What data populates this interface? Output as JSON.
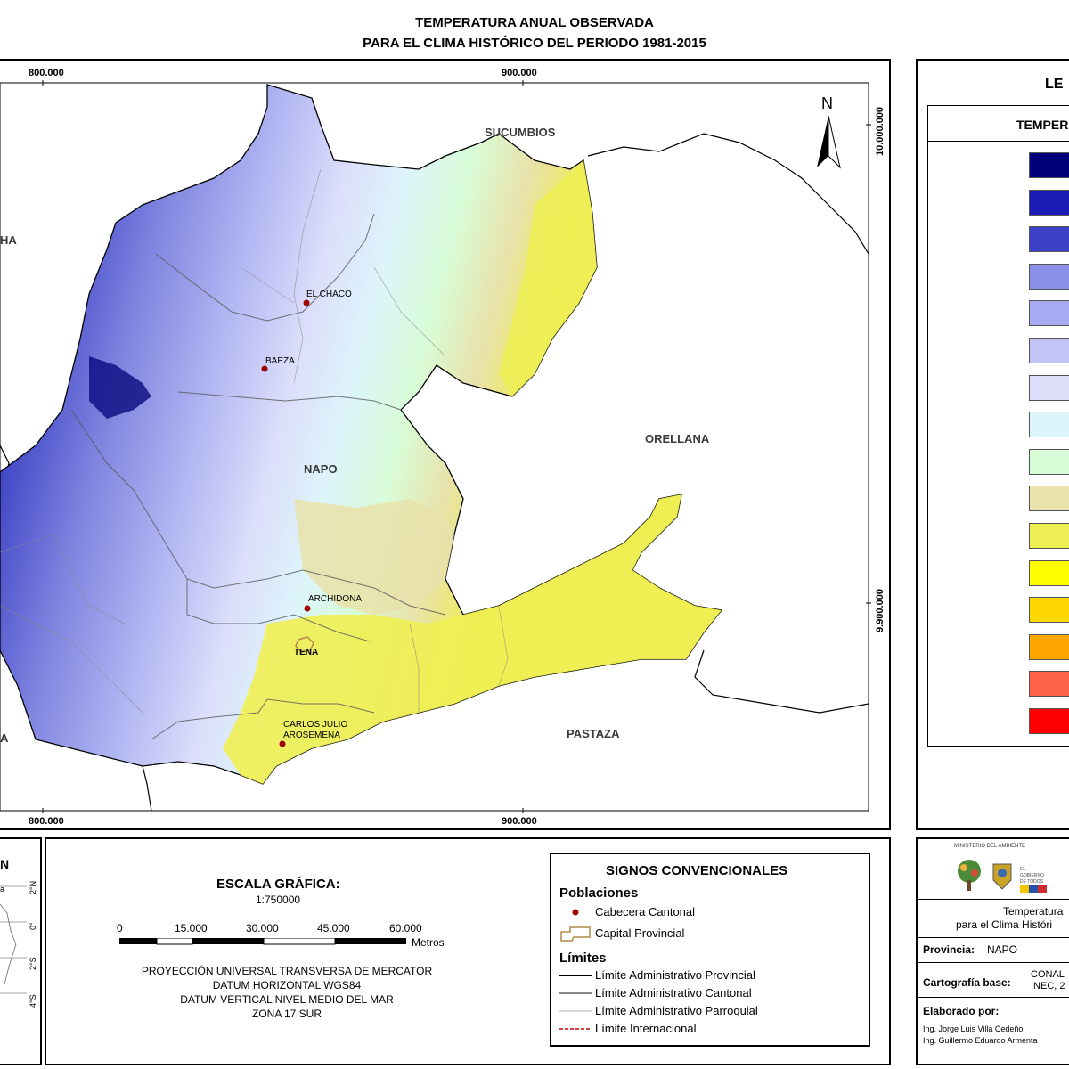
{
  "title": {
    "line1": "TEMPERATURA ANUAL OBSERVADA",
    "line2": "PARA EL CLIMA HISTÓRICO DEL PERIODO 1981-2015"
  },
  "map": {
    "x_ticks": [
      "800.000",
      "900.000"
    ],
    "y_ticks": [
      "10.000.000",
      "9.900.000"
    ],
    "regions": {
      "sucumbios": "SUCUMBIOS",
      "orellana": "ORELLANA",
      "napo": "NAPO",
      "pastaza": "PASTAZA",
      "west_top": "HA",
      "west_bottom": "A"
    },
    "towns": {
      "el_chaco": "EL CHACO",
      "baeza": "BAEZA",
      "archidona": "ARCHIDONA",
      "tena": "TENA",
      "carlos_julio_1": "CARLOS JULIO",
      "carlos_julio_2": "AROSEMENA"
    },
    "north_label": "N"
  },
  "legend": {
    "title": "LE",
    "subtitle": "TEMPER",
    "swatch_colors": [
      "#00007a",
      "#1a1ab4",
      "#3b40c4",
      "#8a90e6",
      "#a6aaf0",
      "#c2c4f8",
      "#dcdefa",
      "#ddf4fb",
      "#d8fcd8",
      "#e9e2aa",
      "#eeee55",
      "#ffff00",
      "#ffd700",
      "#ffa500",
      "#ff6347",
      "#ff0000"
    ]
  },
  "inset": {
    "title": "N",
    "lat_labels": [
      "2°N",
      "0°",
      "2°S",
      "4°S"
    ],
    "side_label": "a"
  },
  "scale": {
    "title": "ESCALA GRÁFICA:",
    "ratio": "1:750000",
    "ticks": [
      "0",
      "15.000",
      "30.000",
      "45.000",
      "60.000"
    ],
    "unit": "Metros",
    "projection": [
      "PROYECCIÓN UNIVERSAL TRANSVERSA DE MERCATOR",
      "DATUM HORIZONTAL WGS84",
      "DATUM VERTICAL NIVEL MEDIO DEL MAR",
      "ZONA 17 SUR"
    ]
  },
  "signs": {
    "title": "SIGNOS CONVENCIONALES",
    "poblaciones": "Poblaciones",
    "cabecera": "Cabecera Cantonal",
    "capital": "Capital Provincial",
    "limites": "Límites",
    "lim_provincial": "Límite Administrativo Provincial",
    "lim_cantonal": "Límite Administrativo Cantonal",
    "lim_parroquial": "Límite Administrativo Parroquial",
    "lim_internacional": "Límite Internacional"
  },
  "credits": {
    "ministry": "MINISTERIO DEL AMBIENTE",
    "gob1": "EL",
    "gob2": "GOBIERNO",
    "gob3": "DE TODOS",
    "map_title1": "Temperatura",
    "map_title2": "para el Clima Históri",
    "provincia_label": "Provincia:",
    "provincia_value": "NAPO",
    "cartografia_label": "Cartografía base:",
    "cartografia_value1": "CONAL",
    "cartografia_value2": "INEC, 2",
    "elaborado_label": "Elaborado por:",
    "author1": "Ing. Jorge Luis Villa Cedeño",
    "author2": "Ing. Guillermo Eduardo Armenta"
  }
}
